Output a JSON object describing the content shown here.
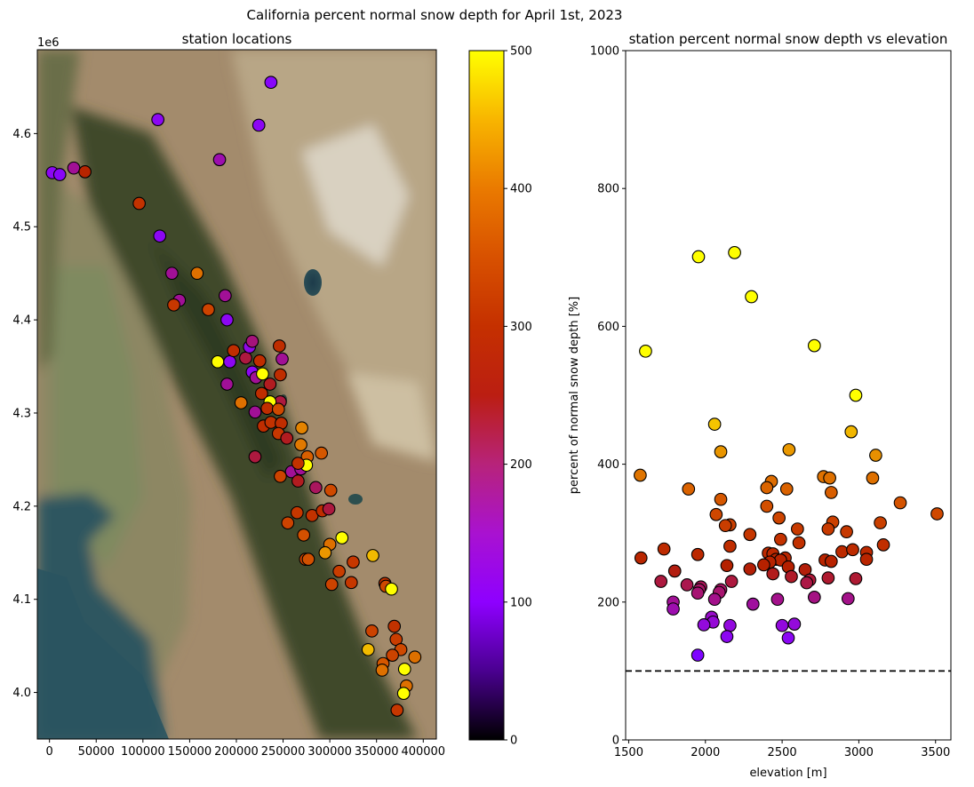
{
  "figure": {
    "suptitle": "California percent normal snow depth for April 1st, 2023"
  },
  "colors": {
    "marker_edge": "#000000",
    "reference_line": "#000000",
    "background": "#ffffff"
  },
  "chart_data": [
    {
      "type": "scatter",
      "title": "station locations",
      "xlabel": "",
      "ylabel": "",
      "y_offset_text": "1e6",
      "background": "satellite imagery",
      "xlim": [
        -13000,
        414000
      ],
      "ylim": [
        3950000,
        4690000
      ],
      "xticks": [
        0,
        50000,
        100000,
        150000,
        200000,
        250000,
        300000,
        350000,
        400000
      ],
      "xtick_labels": [
        "0",
        "50000",
        "100000",
        "150000",
        "200000",
        "250000",
        "300000",
        "350000",
        "400000"
      ],
      "yticks": [
        4000000,
        4100000,
        4200000,
        4300000,
        4400000,
        4500000,
        4600000
      ],
      "ytick_labels": [
        "4.0",
        "4.1",
        "4.2",
        "4.3",
        "4.4",
        "4.5",
        "4.6"
      ],
      "colorbar": {
        "colormap": "gnuplot",
        "range": [
          0,
          500
        ],
        "ticks": [
          0,
          100,
          200,
          300,
          400,
          500
        ],
        "tick_labels": [
          "0",
          "100",
          "200",
          "300",
          "400",
          "500"
        ]
      },
      "points_xyc": [
        [
          237000,
          4655000,
          140
        ],
        [
          116000,
          4615000,
          150
        ],
        [
          224000,
          4609000,
          150
        ],
        [
          182000,
          4572000,
          190
        ],
        [
          3000,
          4558000,
          150
        ],
        [
          11000,
          4556000,
          145
        ],
        [
          26000,
          4563000,
          200
        ],
        [
          38000,
          4559000,
          260
        ],
        [
          96000,
          4525000,
          290
        ],
        [
          118000,
          4490000,
          150
        ],
        [
          131000,
          4450000,
          200
        ],
        [
          158000,
          4450000,
          380
        ],
        [
          139000,
          4421000,
          200
        ],
        [
          133000,
          4416000,
          300
        ],
        [
          170000,
          4411000,
          320
        ],
        [
          188000,
          4426000,
          200
        ],
        [
          190000,
          4400000,
          150
        ],
        [
          180000,
          4355000,
          500
        ],
        [
          193000,
          4355000,
          150
        ],
        [
          197000,
          4367000,
          280
        ],
        [
          210000,
          4359000,
          230
        ],
        [
          214000,
          4371000,
          160
        ],
        [
          217000,
          4377000,
          210
        ],
        [
          225000,
          4356000,
          280
        ],
        [
          246000,
          4372000,
          280
        ],
        [
          249000,
          4358000,
          200
        ],
        [
          217000,
          4344000,
          150
        ],
        [
          221000,
          4338000,
          200
        ],
        [
          228000,
          4342000,
          500
        ],
        [
          236000,
          4331000,
          240
        ],
        [
          247000,
          4341000,
          280
        ],
        [
          190000,
          4331000,
          200
        ],
        [
          227000,
          4321000,
          280
        ],
        [
          247000,
          4312000,
          230
        ],
        [
          236000,
          4312000,
          500
        ],
        [
          220000,
          4301000,
          200
        ],
        [
          233000,
          4305000,
          280
        ],
        [
          245000,
          4304000,
          330
        ],
        [
          205000,
          4311000,
          380
        ],
        [
          229000,
          4286000,
          280
        ],
        [
          237000,
          4290000,
          290
        ],
        [
          248000,
          4289000,
          280
        ],
        [
          245000,
          4278000,
          300
        ],
        [
          254000,
          4273000,
          240
        ],
        [
          270000,
          4284000,
          400
        ],
        [
          220000,
          4253000,
          230
        ],
        [
          269000,
          4266000,
          390
        ],
        [
          276000,
          4253000,
          360
        ],
        [
          291000,
          4257000,
          350
        ],
        [
          259000,
          4237000,
          200
        ],
        [
          269000,
          4240000,
          200
        ],
        [
          275000,
          4244000,
          500
        ],
        [
          266000,
          4246000,
          290
        ],
        [
          247000,
          4232000,
          320
        ],
        [
          266000,
          4227000,
          240
        ],
        [
          285000,
          4220000,
          220
        ],
        [
          301000,
          4217000,
          330
        ],
        [
          265000,
          4193000,
          300
        ],
        [
          255000,
          4182000,
          320
        ],
        [
          281000,
          4190000,
          290
        ],
        [
          292000,
          4195000,
          280
        ],
        [
          299000,
          4197000,
          230
        ],
        [
          272000,
          4169000,
          340
        ],
        [
          313000,
          4166000,
          500
        ],
        [
          300000,
          4159000,
          380
        ],
        [
          295000,
          4150000,
          420
        ],
        [
          274000,
          4143000,
          320
        ],
        [
          277000,
          4143000,
          340
        ],
        [
          346000,
          4147000,
          450
        ],
        [
          310000,
          4130000,
          310
        ],
        [
          325000,
          4140000,
          300
        ],
        [
          323000,
          4118000,
          300
        ],
        [
          302000,
          4116000,
          320
        ],
        [
          359000,
          4117000,
          290
        ],
        [
          360000,
          4114000,
          330
        ],
        [
          366000,
          4111000,
          500
        ],
        [
          345000,
          4066000,
          320
        ],
        [
          369000,
          4071000,
          290
        ],
        [
          341000,
          4046000,
          450
        ],
        [
          371000,
          4057000,
          310
        ],
        [
          376000,
          4046000,
          330
        ],
        [
          367000,
          4040000,
          320
        ],
        [
          357000,
          4031000,
          350
        ],
        [
          356000,
          4024000,
          380
        ],
        [
          391000,
          4038000,
          380
        ],
        [
          380000,
          4025000,
          500
        ],
        [
          382000,
          4007000,
          380
        ],
        [
          379000,
          3999000,
          500
        ],
        [
          372000,
          3981000,
          300
        ]
      ]
    },
    {
      "type": "scatter",
      "title": "station percent normal snow depth vs elevation",
      "xlabel": "elevation [m]",
      "ylabel": "percent of normal snow depth [%]",
      "xlim": [
        1480,
        3600
      ],
      "ylim": [
        0,
        1000
      ],
      "xticks": [
        1500,
        2000,
        2500,
        3000,
        3500
      ],
      "xtick_labels": [
        "1500",
        "2000",
        "2500",
        "3000",
        "3500"
      ],
      "yticks": [
        0,
        200,
        400,
        600,
        800,
        1000
      ],
      "ytick_labels": [
        "0",
        "200",
        "400",
        "600",
        "800",
        "1000"
      ],
      "reference_line": {
        "y": 100,
        "style": "dashed"
      },
      "color_by": "y (same gnuplot colormap, clipped at 500)",
      "points": [
        [
          1955,
          701
        ],
        [
          2190,
          707
        ],
        [
          2300,
          643
        ],
        [
          1610,
          564
        ],
        [
          2710,
          572
        ],
        [
          2980,
          500
        ],
        [
          2060,
          458
        ],
        [
          2950,
          447
        ],
        [
          2545,
          421
        ],
        [
          2100,
          418
        ],
        [
          3110,
          413
        ],
        [
          1575,
          384
        ],
        [
          2770,
          382
        ],
        [
          2810,
          380
        ],
        [
          3090,
          380
        ],
        [
          2430,
          375
        ],
        [
          1890,
          364
        ],
        [
          2400,
          366
        ],
        [
          2530,
          364
        ],
        [
          2820,
          359
        ],
        [
          2100,
          349
        ],
        [
          3270,
          344
        ],
        [
          2400,
          339
        ],
        [
          2070,
          327
        ],
        [
          3510,
          328
        ],
        [
          2480,
          322
        ],
        [
          2830,
          316
        ],
        [
          3140,
          315
        ],
        [
          2160,
          312
        ],
        [
          2130,
          311
        ],
        [
          2600,
          306
        ],
        [
          2800,
          306
        ],
        [
          2920,
          302
        ],
        [
          2290,
          298
        ],
        [
          2490,
          291
        ],
        [
          2610,
          286
        ],
        [
          3160,
          283
        ],
        [
          2160,
          281
        ],
        [
          1730,
          277
        ],
        [
          2890,
          273
        ],
        [
          3050,
          272
        ],
        [
          2960,
          276
        ],
        [
          2410,
          271
        ],
        [
          2440,
          270
        ],
        [
          1950,
          269
        ],
        [
          2520,
          264
        ],
        [
          1580,
          264
        ],
        [
          2780,
          261
        ],
        [
          2820,
          259
        ],
        [
          2460,
          262
        ],
        [
          2490,
          261
        ],
        [
          3050,
          262
        ],
        [
          2420,
          258
        ],
        [
          2140,
          253
        ],
        [
          2380,
          254
        ],
        [
          2540,
          251
        ],
        [
          2290,
          248
        ],
        [
          2650,
          247
        ],
        [
          1800,
          245
        ],
        [
          2440,
          241
        ],
        [
          2560,
          237
        ],
        [
          2800,
          235
        ],
        [
          2980,
          234
        ],
        [
          2680,
          232
        ],
        [
          1710,
          230
        ],
        [
          2170,
          230
        ],
        [
          2660,
          228
        ],
        [
          1880,
          225
        ],
        [
          1970,
          222
        ],
        [
          1960,
          218
        ],
        [
          2100,
          218
        ],
        [
          2090,
          214
        ],
        [
          1950,
          213
        ],
        [
          2060,
          204
        ],
        [
          2710,
          207
        ],
        [
          2930,
          205
        ],
        [
          2470,
          204
        ],
        [
          1790,
          200
        ],
        [
          2310,
          197
        ],
        [
          1790,
          190
        ],
        [
          2040,
          178
        ],
        [
          2050,
          171
        ],
        [
          1990,
          167
        ],
        [
          2160,
          166
        ],
        [
          2500,
          166
        ],
        [
          2580,
          168
        ],
        [
          2140,
          150
        ],
        [
          2540,
          148
        ],
        [
          1950,
          123
        ]
      ]
    }
  ]
}
